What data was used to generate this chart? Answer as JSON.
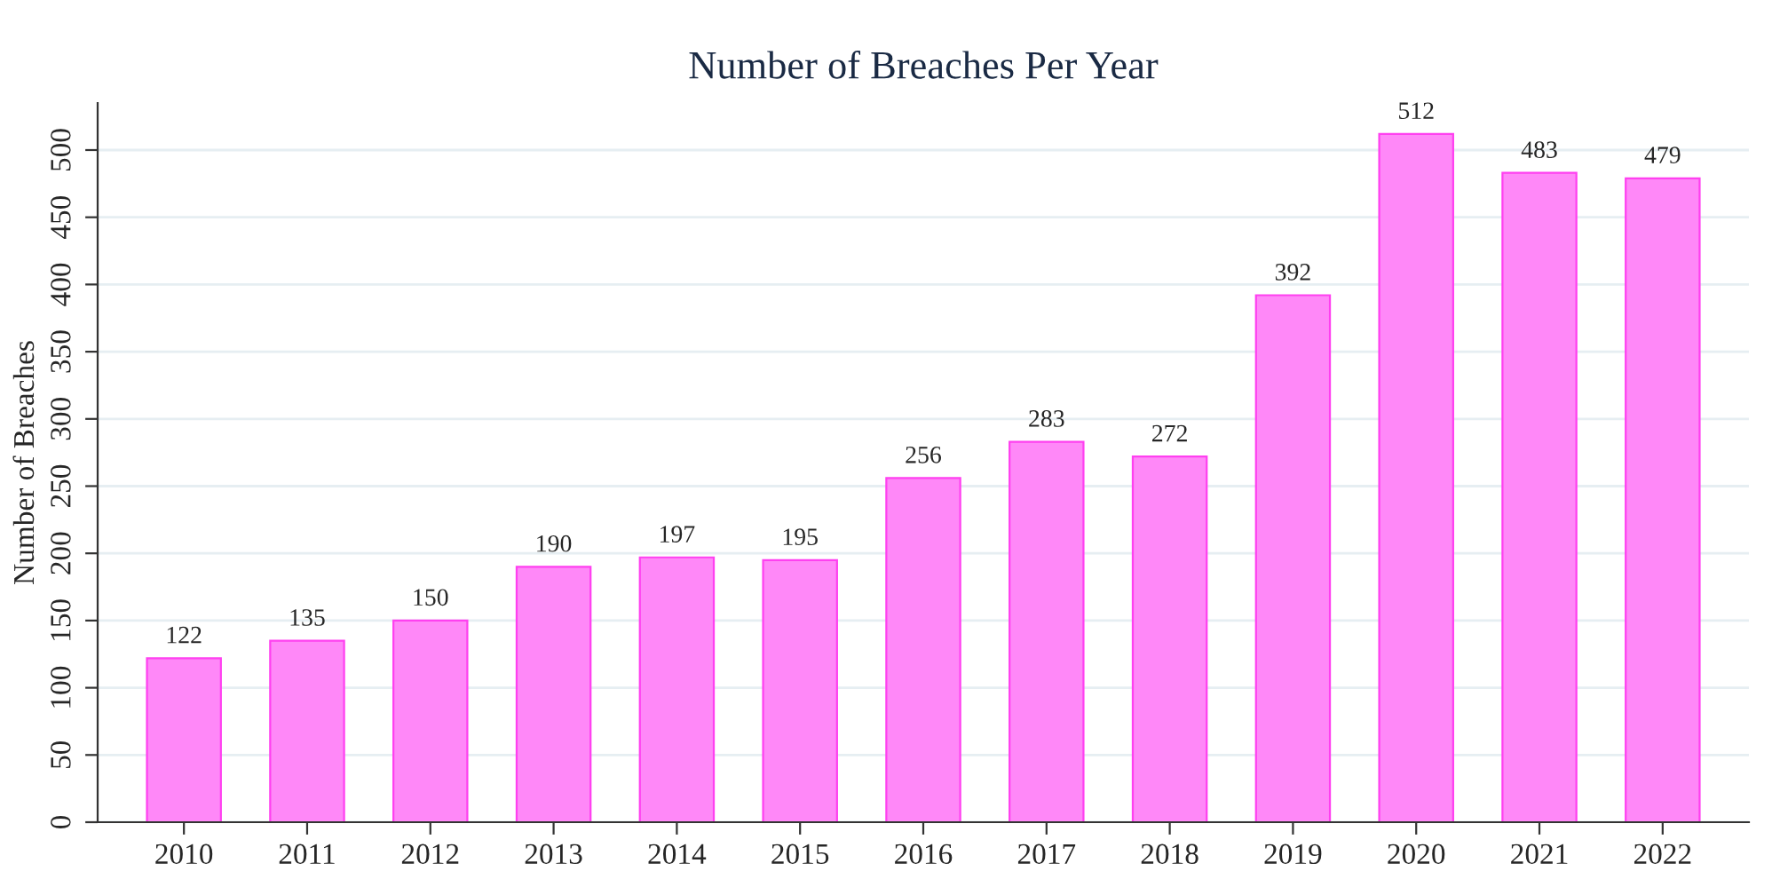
{
  "chart_data": {
    "type": "bar",
    "title": "Number of Breaches Per Year",
    "ylabel": "Number of Breaches",
    "categories": [
      "2010",
      "2011",
      "2012",
      "2013",
      "2014",
      "2015",
      "2016",
      "2017",
      "2018",
      "2019",
      "2020",
      "2021",
      "2022"
    ],
    "values": [
      122,
      135,
      150,
      190,
      197,
      195,
      256,
      283,
      272,
      392,
      512,
      483,
      479
    ],
    "color": "#ff88f8",
    "ylim": [
      0,
      535
    ],
    "yticks": [
      0,
      50,
      100,
      150,
      200,
      250,
      300,
      350,
      400,
      450,
      500
    ],
    "grid": "y",
    "data_labels": true,
    "legend": false
  }
}
